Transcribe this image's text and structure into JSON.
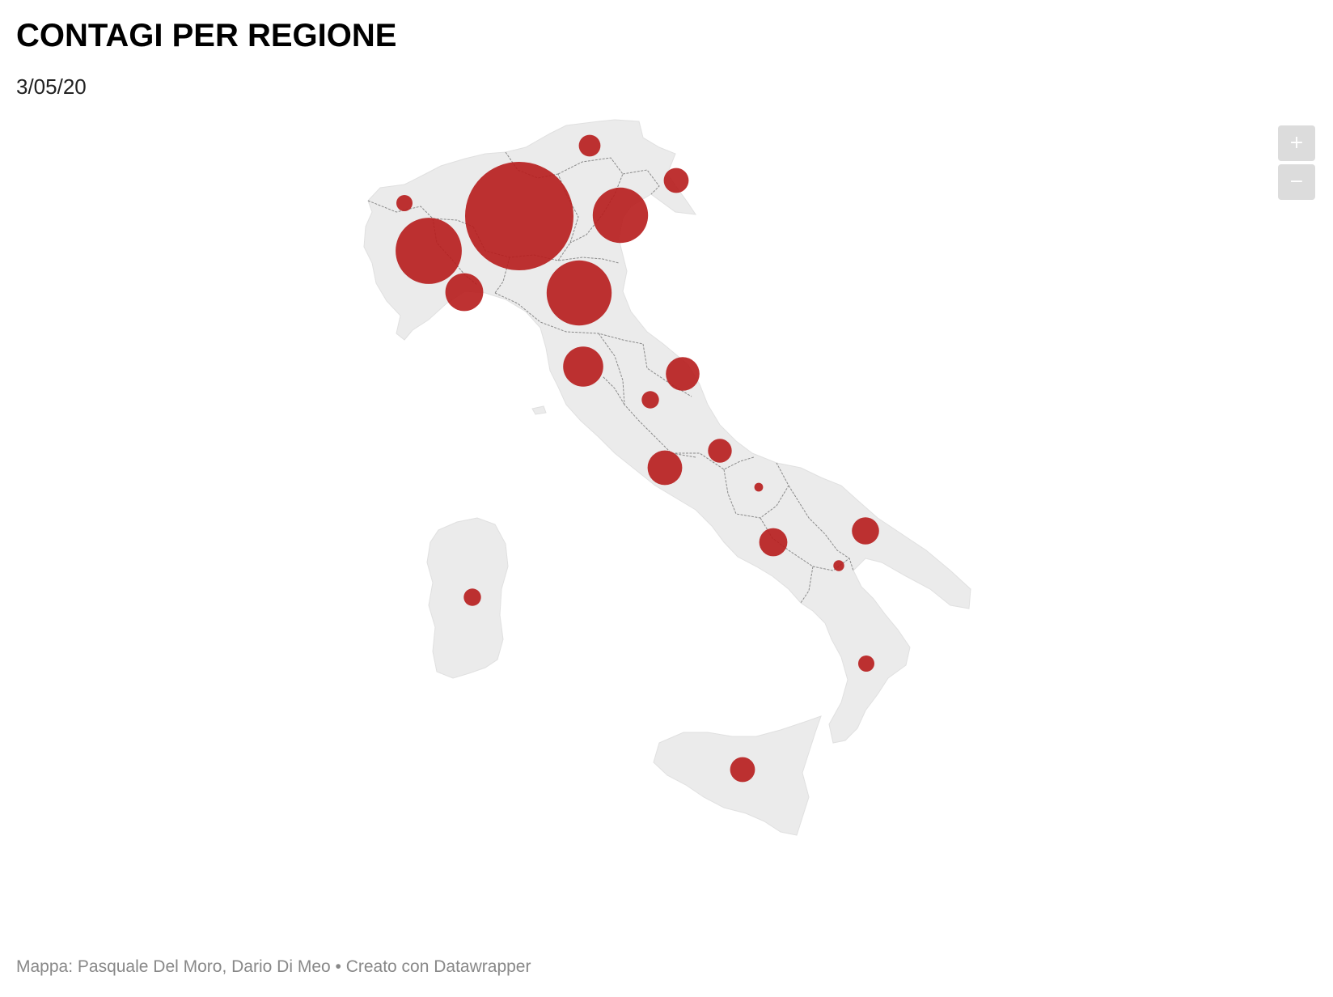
{
  "header": {
    "title": "CONTAGI PER REGIONE",
    "date": "3/05/20"
  },
  "zoom": {
    "in_label": "+",
    "out_label": "−"
  },
  "footer": {
    "credit": "Mappa: Pasquale Del Moro, Dario Di Meo • Creato con Datawrapper"
  },
  "colors": {
    "land": "#ebebeb",
    "border": "#8a8a8a",
    "bubble": "#b71c1c"
  },
  "regions": [
    {
      "id": "lombardia",
      "size": 1.0
    },
    {
      "id": "piemonte",
      "size": 0.61
    },
    {
      "id": "emilia-romagna",
      "size": 0.6
    },
    {
      "id": "veneto",
      "size": 0.51
    },
    {
      "id": "toscana",
      "size": 0.37
    },
    {
      "id": "liguria",
      "size": 0.35
    },
    {
      "id": "marche",
      "size": 0.31
    },
    {
      "id": "lazio",
      "size": 0.32
    },
    {
      "id": "puglia",
      "size": 0.25
    },
    {
      "id": "campania",
      "size": 0.26
    },
    {
      "id": "sicilia",
      "size": 0.23
    },
    {
      "id": "friuli-venezia-giulia",
      "size": 0.23
    },
    {
      "id": "abruzzo",
      "size": 0.22
    },
    {
      "id": "trentino-alto-adige",
      "size": 0.2
    },
    {
      "id": "valle-d-aosta",
      "size": 0.15
    },
    {
      "id": "umbria",
      "size": 0.16
    },
    {
      "id": "sardegna",
      "size": 0.16
    },
    {
      "id": "calabria",
      "size": 0.15
    },
    {
      "id": "basilicata",
      "size": 0.1
    },
    {
      "id": "molise",
      "size": 0.08
    }
  ]
}
